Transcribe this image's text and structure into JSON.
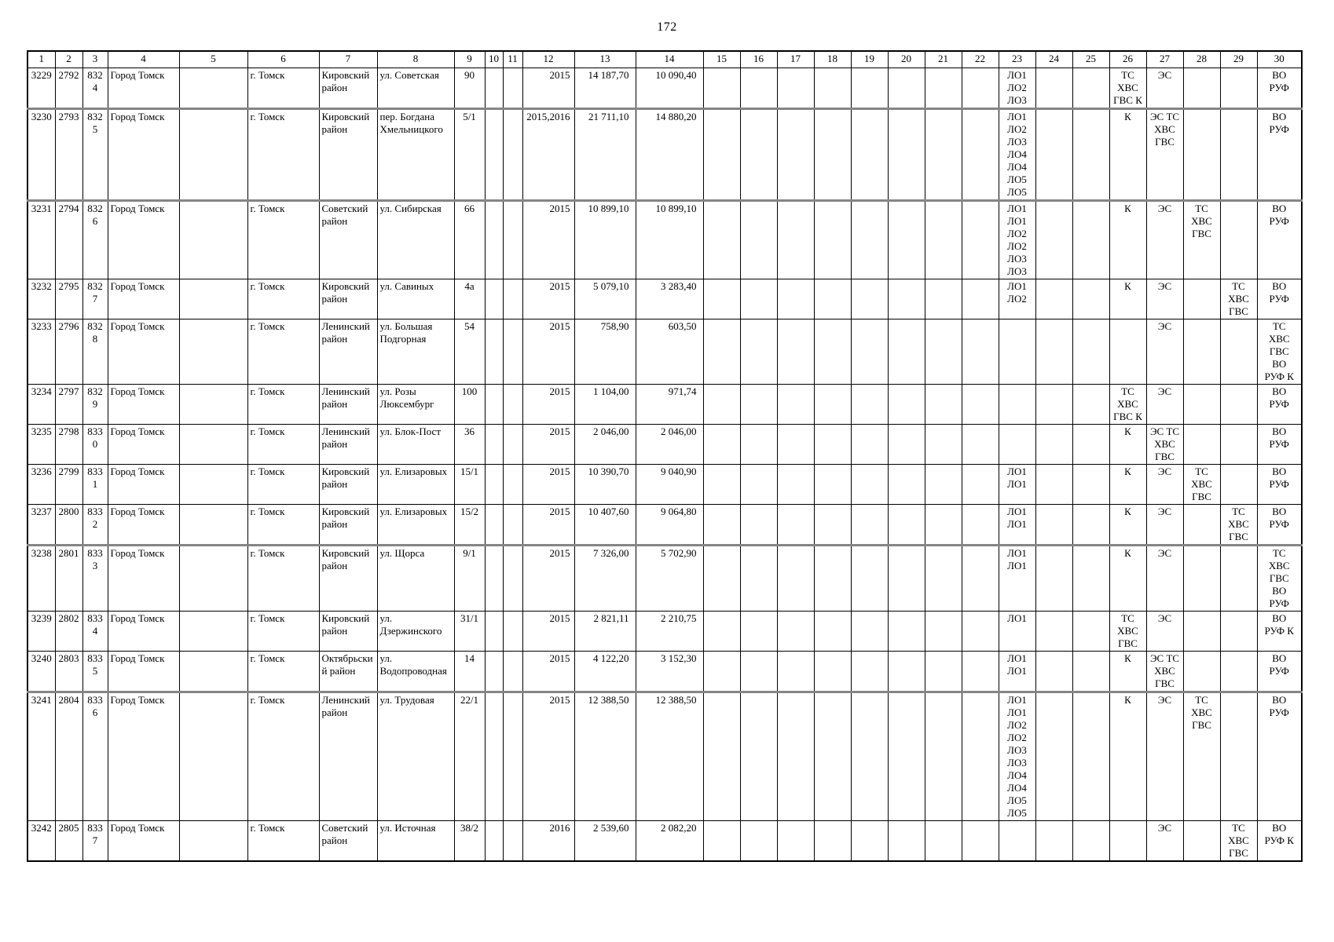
{
  "page": {
    "number": "172"
  },
  "table": {
    "column_headers": [
      "1",
      "2",
      "3",
      "4",
      "5",
      "6",
      "7",
      "8",
      "9",
      "10",
      "11",
      "12",
      "13",
      "14",
      "15",
      "16",
      "17",
      "18",
      "19",
      "20",
      "21",
      "22",
      "23",
      "24",
      "25",
      "26",
      "27",
      "28",
      "29",
      "30"
    ],
    "rows": [
      {
        "thick_bottom": true,
        "cells": [
          "3229",
          "2792",
          "8324",
          "Город Томск",
          "",
          "г. Томск",
          "Кировский район",
          "ул. Советская",
          "90",
          "",
          "",
          "2015",
          "14 187,70",
          "10 090,40",
          "",
          "",
          "",
          "",
          "",
          "",
          "",
          "",
          "ЛО1\nЛО2\nЛО3",
          "",
          "",
          "ТС\nХВС\nГВС К",
          "ЭС",
          "",
          "",
          "ВО\nРУФ"
        ]
      },
      {
        "thick_bottom": true,
        "cells": [
          "3230",
          "2793",
          "8325",
          "Город Томск",
          "",
          "г. Томск",
          "Кировский район",
          "пер. Богдана Хмельницкого",
          "5/1",
          "",
          "",
          "2015,2016",
          "21 711,10",
          "14 880,20",
          "",
          "",
          "",
          "",
          "",
          "",
          "",
          "",
          "ЛО1\nЛО2\nЛО3\nЛО4\nЛО4\nЛО5\nЛО5",
          "",
          "",
          "К",
          "ЭС ТС\nХВС\nГВС",
          "",
          "",
          "ВО\nРУФ"
        ]
      },
      {
        "thick_bottom": false,
        "cells": [
          "3231",
          "2794",
          "8326",
          "Город Томск",
          "",
          "г. Томск",
          "Советский район",
          "ул. Сибирская",
          "66",
          "",
          "",
          "2015",
          "10 899,10",
          "10 899,10",
          "",
          "",
          "",
          "",
          "",
          "",
          "",
          "",
          "ЛО1\nЛО1\nЛО2\nЛО2\nЛО3\nЛО3",
          "",
          "",
          "К",
          "ЭС",
          "ТС\nХВС\nГВС",
          "",
          "ВО\nРУФ"
        ]
      },
      {
        "thick_bottom": false,
        "cells": [
          "3232",
          "2795",
          "8327",
          "Город Томск",
          "",
          "г. Томск",
          "Кировский район",
          "ул. Савиных",
          "4а",
          "",
          "",
          "2015",
          "5 079,10",
          "3 283,40",
          "",
          "",
          "",
          "",
          "",
          "",
          "",
          "",
          "ЛО1\nЛО2",
          "",
          "",
          "К",
          "ЭС",
          "",
          "ТС\nХВС\nГВС",
          "ВО\nРУФ"
        ]
      },
      {
        "thick_bottom": false,
        "cells": [
          "3233",
          "2796",
          "8328",
          "Город Томск",
          "",
          "г. Томск",
          "Ленинский район",
          "ул. Большая Подгорная",
          "54",
          "",
          "",
          "2015",
          "758,90",
          "603,50",
          "",
          "",
          "",
          "",
          "",
          "",
          "",
          "",
          "",
          "",
          "",
          "",
          "ЭС",
          "",
          "",
          "ТС\nХВС\nГВС\nВО\nРУФ К"
        ]
      },
      {
        "thick_bottom": false,
        "cells": [
          "3234",
          "2797",
          "8329",
          "Город Томск",
          "",
          "г. Томск",
          "Ленинский район",
          "ул. Розы Люксембург",
          "100",
          "",
          "",
          "2015",
          "1 104,00",
          "971,74",
          "",
          "",
          "",
          "",
          "",
          "",
          "",
          "",
          "",
          "",
          "",
          "ТС\nХВС\nГВС К",
          "ЭС",
          "",
          "",
          "ВО\nРУФ"
        ]
      },
      {
        "thick_bottom": false,
        "cells": [
          "3235",
          "2798",
          "8330",
          "Город Томск",
          "",
          "г. Томск",
          "Ленинский район",
          "ул. Блок-Пост",
          "36",
          "",
          "",
          "2015",
          "2 046,00",
          "2 046,00",
          "",
          "",
          "",
          "",
          "",
          "",
          "",
          "",
          "",
          "",
          "",
          "К",
          "ЭС ТС\nХВС\nГВС",
          "",
          "",
          "ВО\nРУФ"
        ]
      },
      {
        "thick_bottom": false,
        "cells": [
          "3236",
          "2799",
          "8331",
          "Город Томск",
          "",
          "г. Томск",
          "Кировский район",
          "ул. Елизаровых",
          "15/1",
          "",
          "",
          "2015",
          "10 390,70",
          "9 040,90",
          "",
          "",
          "",
          "",
          "",
          "",
          "",
          "",
          "ЛО1\nЛО1",
          "",
          "",
          "К",
          "ЭС",
          "ТС\nХВС\nГВС",
          "",
          "ВО\nРУФ"
        ]
      },
      {
        "thick_bottom": true,
        "cells": [
          "3237",
          "2800",
          "8332",
          "Город Томск",
          "",
          "г. Томск",
          "Кировский район",
          "ул. Елизаровых",
          "15/2",
          "",
          "",
          "2015",
          "10 407,60",
          "9 064,80",
          "",
          "",
          "",
          "",
          "",
          "",
          "",
          "",
          "ЛО1\nЛО1",
          "",
          "",
          "К",
          "ЭС",
          "",
          "ТС\nХВС\nГВС",
          "ВО\nРУФ"
        ]
      },
      {
        "thick_bottom": false,
        "cells": [
          "3238",
          "2801",
          "8333",
          "Город Томск",
          "",
          "г. Томск",
          "Кировский район",
          "ул. Щорса",
          "9/1",
          "",
          "",
          "2015",
          "7 326,00",
          "5 702,90",
          "",
          "",
          "",
          "",
          "",
          "",
          "",
          "",
          "ЛО1\nЛО1",
          "",
          "",
          "К",
          "ЭС",
          "",
          "",
          "ТС\nХВС\nГВС\nВО\nРУФ"
        ]
      },
      {
        "thick_bottom": false,
        "cells": [
          "3239",
          "2802",
          "8334",
          "Город Томск",
          "",
          "г. Томск",
          "Кировский район",
          "ул. Дзержинского",
          "31/1",
          "",
          "",
          "2015",
          "2 821,11",
          "2 210,75",
          "",
          "",
          "",
          "",
          "",
          "",
          "",
          "",
          "ЛО1",
          "",
          "",
          "ТС\nХВС\nГВС",
          "ЭС",
          "",
          "",
          "ВО\nРУФ К"
        ]
      },
      {
        "thick_bottom": true,
        "cells": [
          "3240",
          "2803",
          "8335",
          "Город Томск",
          "",
          "г. Томск",
          "Октябрьский район",
          "ул. Водопроводная",
          "14",
          "",
          "",
          "2015",
          "4 122,20",
          "3 152,30",
          "",
          "",
          "",
          "",
          "",
          "",
          "",
          "",
          "ЛО1\nЛО1",
          "",
          "",
          "К",
          "ЭС ТС\nХВС\nГВС",
          "",
          "",
          "ВО\nРУФ"
        ]
      },
      {
        "thick_bottom": false,
        "cells": [
          "3241",
          "2804",
          "8336",
          "Город Томск",
          "",
          "г. Томск",
          "Ленинский район",
          "ул. Трудовая",
          "22/1",
          "",
          "",
          "2015",
          "12 388,50",
          "12 388,50",
          "",
          "",
          "",
          "",
          "",
          "",
          "",
          "",
          "ЛО1\nЛО1\nЛО2\nЛО2\nЛО3\nЛО3\nЛО4\nЛО4\nЛО5\nЛО5",
          "",
          "",
          "К",
          "ЭС",
          "ТС\nХВС\nГВС",
          "",
          "ВО\nРУФ"
        ]
      },
      {
        "thick_bottom": false,
        "cells": [
          "3242",
          "2805",
          "8337",
          "Город Томск",
          "",
          "г. Томск",
          "Советский район",
          "ул. Источная",
          "38/2",
          "",
          "",
          "2016",
          "2 539,60",
          "2 082,20",
          "",
          "",
          "",
          "",
          "",
          "",
          "",
          "",
          "",
          "",
          "",
          "",
          "ЭС",
          "",
          "ТС\nХВС\nГВС",
          "ВО\nРУФ К"
        ]
      }
    ]
  }
}
